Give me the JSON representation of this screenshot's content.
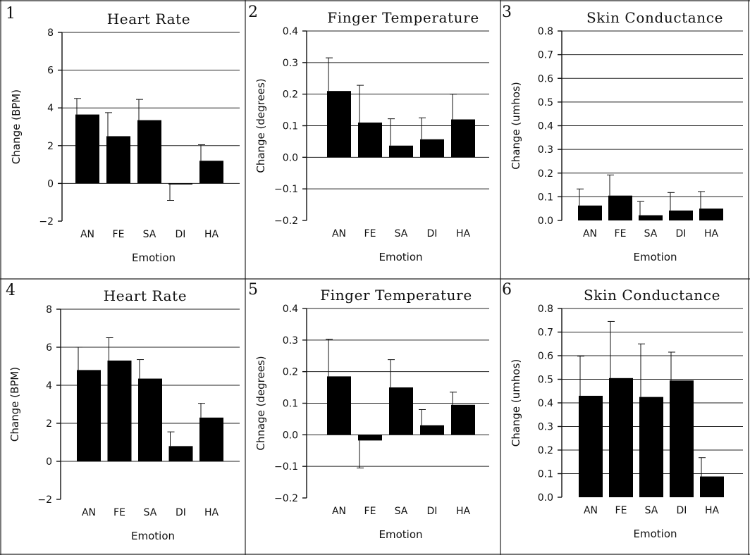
{
  "chart_data": [
    {
      "panel": "1",
      "type": "bar",
      "title": "Heart Rate",
      "ylabel": "Change (BPM)",
      "xlabel": "Emotion",
      "categories": [
        "AN",
        "FE",
        "SA",
        "DI",
        "HA"
      ],
      "values": [
        3.65,
        2.5,
        3.35,
        -0.05,
        1.2
      ],
      "errors": [
        0.85,
        1.25,
        1.1,
        0.85,
        0.85
      ],
      "ylim": [
        -2,
        8
      ],
      "yticks": [
        "-2",
        "0",
        "2",
        "4",
        "6",
        "8"
      ],
      "grid": true
    },
    {
      "panel": "2",
      "type": "bar",
      "title": "Finger Temperature",
      "ylabel": "Change (degrees)",
      "xlabel": "Emotion",
      "categories": [
        "AN",
        "FE",
        "SA",
        "DI",
        "HA"
      ],
      "values": [
        0.21,
        0.11,
        0.037,
        0.057,
        0.12
      ],
      "errors": [
        0.105,
        0.118,
        0.085,
        0.068,
        0.08
      ],
      "ylim": [
        -0.2,
        0.4
      ],
      "yticks": [
        "-0.2",
        "-0.1",
        "0.0",
        "0.1",
        "0.2",
        "0.3",
        "0.4"
      ],
      "grid": true
    },
    {
      "panel": "3",
      "type": "bar",
      "title": "Skin Conductance",
      "ylabel": "Change (umhos)",
      "xlabel": "Emotion",
      "categories": [
        "AN",
        "FE",
        "SA",
        "DI",
        "HA"
      ],
      "values": [
        0.063,
        0.105,
        0.022,
        0.042,
        0.05
      ],
      "errors": [
        0.07,
        0.087,
        0.058,
        0.076,
        0.072
      ],
      "ylim": [
        0,
        0.8
      ],
      "yticks": [
        "0.0",
        "0.1",
        "0.2",
        "0.3",
        "0.4",
        "0.5",
        "0.6",
        "0.7",
        "0.8"
      ],
      "grid": true
    },
    {
      "panel": "4",
      "type": "bar",
      "title": "Heart Rate",
      "ylabel": "Change (BPM)",
      "xlabel": "Emotion",
      "categories": [
        "AN",
        "FE",
        "SA",
        "DI",
        "HA"
      ],
      "values": [
        4.8,
        5.3,
        4.35,
        0.8,
        2.3
      ],
      "errors": [
        1.2,
        1.2,
        1.0,
        0.75,
        0.75
      ],
      "ylim": [
        -2,
        8
      ],
      "yticks": [
        "-2",
        "0",
        "2",
        "4",
        "6",
        "8"
      ],
      "grid": true
    },
    {
      "panel": "5",
      "type": "bar",
      "title": "Finger Temperature",
      "ylabel": "Chnage (degrees)",
      "xlabel": "Emotion",
      "categories": [
        "AN",
        "FE",
        "SA",
        "DI",
        "HA"
      ],
      "values": [
        0.185,
        -0.018,
        0.15,
        0.03,
        0.095
      ],
      "errors": [
        0.118,
        0.087,
        0.088,
        0.05,
        0.04
      ],
      "ylim": [
        -0.2,
        0.4
      ],
      "yticks": [
        "-0.2",
        "-0.1",
        "0.0",
        "0.1",
        "0.2",
        "0.3",
        "0.4"
      ],
      "grid": true
    },
    {
      "panel": "6",
      "type": "bar",
      "title": "Skin Conductance",
      "ylabel": "Change (umhos)",
      "xlabel": "Emotion",
      "categories": [
        "AN",
        "FE",
        "SA",
        "DI",
        "HA"
      ],
      "values": [
        0.43,
        0.505,
        0.425,
        0.495,
        0.088
      ],
      "errors": [
        0.168,
        0.24,
        0.225,
        0.12,
        0.08
      ],
      "ylim": [
        0,
        0.8
      ],
      "yticks": [
        "0.0",
        "0.1",
        "0.2",
        "0.3",
        "0.4",
        "0.5",
        "0.6",
        "0.7",
        "0.8"
      ],
      "grid": true
    }
  ]
}
